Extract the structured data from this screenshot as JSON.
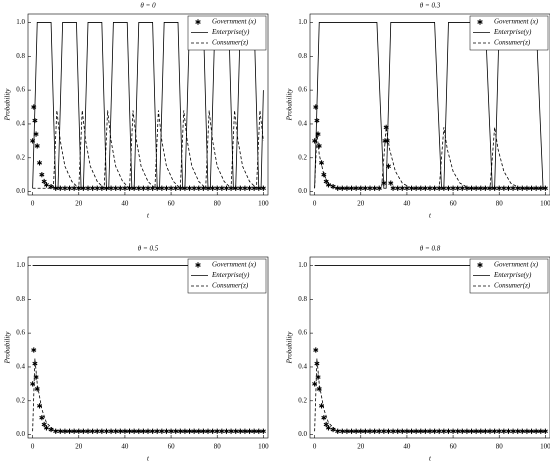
{
  "chart_data": [
    {
      "type": "line",
      "title": "θ = 0",
      "xlabel": "t",
      "ylabel": "Probability",
      "xlim": [
        -2,
        102
      ],
      "ylim": [
        -0.02,
        1.05
      ],
      "xticks": [
        0,
        20,
        40,
        60,
        80,
        100
      ],
      "yticks": [
        {
          "value": 0,
          "label": "0.0"
        },
        0.2,
        0.4,
        0.6,
        0.8,
        {
          "value": 1,
          "label": "1.0"
        }
      ],
      "legend": "upper right",
      "series": [
        {
          "name": "Government (x)",
          "style": "markers",
          "color": "#000000",
          "x": [
            0,
            0.5,
            1,
            1.5,
            2,
            3,
            4,
            5,
            6,
            8,
            10,
            12,
            14,
            16,
            18,
            20,
            22,
            24,
            26,
            28,
            30,
            32,
            34,
            36,
            38,
            40,
            42,
            44,
            46,
            48,
            50,
            52,
            54,
            56,
            58,
            60,
            62,
            64,
            66,
            68,
            70,
            72,
            74,
            76,
            78,
            80,
            82,
            84,
            86,
            88,
            90,
            92,
            94,
            96,
            98,
            100
          ],
          "values": [
            0.3,
            0.5,
            0.42,
            0.34,
            0.27,
            0.17,
            0.1,
            0.06,
            0.04,
            0.03,
            0.02,
            0.02,
            0.02,
            0.02,
            0.02,
            0.02,
            0.02,
            0.02,
            0.02,
            0.02,
            0.02,
            0.02,
            0.02,
            0.02,
            0.02,
            0.02,
            0.02,
            0.02,
            0.02,
            0.02,
            0.02,
            0.02,
            0.02,
            0.02,
            0.02,
            0.02,
            0.02,
            0.02,
            0.02,
            0.02,
            0.02,
            0.02,
            0.02,
            0.02,
            0.02,
            0.02,
            0.02,
            0.02,
            0.02,
            0.02,
            0.02,
            0.02,
            0.02,
            0.02,
            0.02,
            0.02
          ]
        },
        {
          "name": "Enterprise(y)",
          "style": "solid",
          "color": "#000000",
          "x": [
            0,
            1,
            2,
            8,
            9,
            10,
            11,
            12,
            13,
            19,
            20,
            21,
            22,
            23,
            24,
            30,
            31,
            32,
            33,
            34,
            35,
            41,
            42,
            43,
            44,
            45,
            46,
            52,
            53,
            54,
            55,
            56,
            57,
            63,
            64,
            65,
            66,
            67,
            68,
            74,
            75,
            76,
            77,
            78,
            79,
            85,
            86,
            87,
            88,
            89,
            90,
            96,
            97,
            98,
            99,
            100
          ],
          "values": [
            0.02,
            0.5,
            1,
            1,
            0.5,
            0.02,
            0.02,
            0.5,
            1,
            1,
            0.5,
            0.02,
            0.02,
            0.5,
            1,
            1,
            0.5,
            0.02,
            0.02,
            0.5,
            1,
            1,
            0.5,
            0.02,
            0.02,
            0.5,
            1,
            1,
            0.5,
            0.02,
            0.02,
            0.5,
            1,
            1,
            0.5,
            0.02,
            0.02,
            0.5,
            1,
            1,
            0.5,
            0.02,
            0.02,
            0.5,
            1,
            1,
            0.5,
            0.02,
            0.02,
            0.5,
            1,
            1,
            0.5,
            0.02,
            0.02,
            0.6
          ]
        },
        {
          "name": "Consumer(z)",
          "style": "dashed",
          "color": "#000000",
          "x": [
            0,
            9,
            10.5,
            12,
            14,
            17,
            20,
            21.5,
            23,
            25,
            28,
            31,
            32.5,
            34,
            36,
            39,
            42,
            43.5,
            45,
            47,
            50,
            53,
            54.5,
            56,
            58,
            61,
            64,
            65.5,
            67,
            69,
            72,
            75,
            76.5,
            78,
            80,
            83,
            86,
            87.5,
            89,
            91,
            94,
            97,
            98.5,
            100
          ],
          "values": [
            0.02,
            0.02,
            0.48,
            0.3,
            0.15,
            0.06,
            0.02,
            0.48,
            0.3,
            0.15,
            0.06,
            0.02,
            0.48,
            0.3,
            0.15,
            0.06,
            0.02,
            0.48,
            0.3,
            0.15,
            0.06,
            0.02,
            0.48,
            0.3,
            0.15,
            0.06,
            0.02,
            0.48,
            0.3,
            0.15,
            0.06,
            0.02,
            0.48,
            0.3,
            0.15,
            0.06,
            0.02,
            0.48,
            0.3,
            0.15,
            0.06,
            0.02,
            0.48,
            0.3
          ]
        }
      ]
    },
    {
      "type": "line",
      "title": "θ = 0.3",
      "xlabel": "t",
      "ylabel": "Probability",
      "xlim": [
        -2,
        102
      ],
      "ylim": [
        -0.02,
        1.05
      ],
      "xticks": [
        0,
        20,
        40,
        60,
        80,
        100
      ],
      "yticks": [
        {
          "value": 0,
          "label": "0.0"
        },
        0.2,
        0.4,
        0.6,
        0.8,
        {
          "value": 1,
          "label": "1.0"
        }
      ],
      "legend": "upper right",
      "series": [
        {
          "name": "Government (x)",
          "style": "markers",
          "color": "#000000",
          "x": [
            0,
            0.5,
            1,
            1.5,
            2,
            3,
            4,
            5,
            6,
            8,
            10,
            12,
            14,
            16,
            18,
            20,
            22,
            24,
            26,
            28,
            30,
            30.5,
            31,
            31.5,
            32,
            33,
            34,
            36,
            38,
            40,
            42,
            44,
            46,
            48,
            50,
            52,
            54,
            56,
            58,
            60,
            62,
            64,
            66,
            68,
            70,
            72,
            74,
            76,
            78,
            80,
            82,
            84,
            86,
            88,
            90,
            92,
            94,
            96,
            98,
            100
          ],
          "values": [
            0.3,
            0.5,
            0.42,
            0.34,
            0.27,
            0.17,
            0.1,
            0.06,
            0.04,
            0.03,
            0.02,
            0.02,
            0.02,
            0.02,
            0.02,
            0.02,
            0.02,
            0.02,
            0.02,
            0.02,
            0.05,
            0.3,
            0.38,
            0.3,
            0.15,
            0.05,
            0.02,
            0.02,
            0.02,
            0.02,
            0.02,
            0.02,
            0.02,
            0.02,
            0.02,
            0.02,
            0.02,
            0.02,
            0.02,
            0.02,
            0.02,
            0.02,
            0.02,
            0.02,
            0.02,
            0.02,
            0.02,
            0.02,
            0.02,
            0.02,
            0.02,
            0.02,
            0.02,
            0.02,
            0.02,
            0.02,
            0.02,
            0.02,
            0.02,
            0.02
          ]
        },
        {
          "name": "Enterprise(y)",
          "style": "solid",
          "color": "#000000",
          "x": [
            0,
            1,
            2,
            27,
            28.5,
            30,
            31,
            32,
            33,
            52,
            53.5,
            55,
            56,
            57,
            58,
            74,
            75.5,
            77,
            78,
            79,
            80,
            96,
            97.5,
            99,
            100
          ],
          "values": [
            0.02,
            0.5,
            1,
            1,
            0.5,
            0.02,
            0.02,
            0.5,
            1,
            1,
            0.5,
            0.02,
            0.02,
            0.5,
            1,
            1,
            0.5,
            0.02,
            0.02,
            0.5,
            1,
            1,
            0.5,
            0.02,
            0.02
          ]
        },
        {
          "name": "Consumer(z)",
          "style": "dashed",
          "color": "#000000",
          "x": [
            0,
            1,
            2,
            4,
            6,
            9,
            29,
            31,
            32.5,
            35,
            38,
            42,
            54,
            56,
            57.5,
            60,
            63,
            67,
            76,
            78,
            79.5,
            82,
            85,
            89,
            100
          ],
          "values": [
            0.02,
            0.35,
            0.22,
            0.1,
            0.05,
            0.02,
            0.02,
            0.38,
            0.25,
            0.12,
            0.05,
            0.02,
            0.02,
            0.38,
            0.25,
            0.12,
            0.05,
            0.02,
            0.02,
            0.38,
            0.25,
            0.12,
            0.05,
            0.02,
            0.02
          ]
        }
      ]
    },
    {
      "type": "line",
      "title": "θ = 0.5",
      "xlabel": "t",
      "ylabel": "Probability",
      "xlim": [
        -2,
        102
      ],
      "ylim": [
        -0.02,
        1.05
      ],
      "xticks": [
        0,
        20,
        40,
        60,
        80,
        100
      ],
      "yticks": [
        {
          "value": 0,
          "label": "0.0"
        },
        0.2,
        0.4,
        0.6,
        0.8,
        {
          "value": 1,
          "label": "1.0"
        }
      ],
      "legend": "upper right",
      "series": [
        {
          "name": "Government (x)",
          "style": "markers",
          "color": "#000000",
          "x": [
            0,
            0.5,
            1,
            1.5,
            2,
            3,
            4,
            5,
            6,
            8,
            10,
            12,
            14,
            16,
            18,
            20,
            22,
            24,
            26,
            28,
            30,
            32,
            34,
            36,
            38,
            40,
            42,
            44,
            46,
            48,
            50,
            52,
            54,
            56,
            58,
            60,
            62,
            64,
            66,
            68,
            70,
            72,
            74,
            76,
            78,
            80,
            82,
            84,
            86,
            88,
            90,
            92,
            94,
            96,
            98,
            100
          ],
          "values": [
            0.3,
            0.5,
            0.42,
            0.34,
            0.27,
            0.17,
            0.1,
            0.06,
            0.04,
            0.03,
            0.02,
            0.02,
            0.02,
            0.02,
            0.02,
            0.02,
            0.02,
            0.02,
            0.02,
            0.02,
            0.02,
            0.02,
            0.02,
            0.02,
            0.02,
            0.02,
            0.02,
            0.02,
            0.02,
            0.02,
            0.02,
            0.02,
            0.02,
            0.02,
            0.02,
            0.02,
            0.02,
            0.02,
            0.02,
            0.02,
            0.02,
            0.02,
            0.02,
            0.02,
            0.02,
            0.02,
            0.02,
            0.02,
            0.02,
            0.02,
            0.02,
            0.02,
            0.02,
            0.02,
            0.02,
            0.02
          ]
        },
        {
          "name": "Enterprise(y)",
          "style": "solid",
          "color": "#000000",
          "x": [
            0,
            100
          ],
          "values": [
            1,
            1
          ]
        },
        {
          "name": "Consumer(z)",
          "style": "dashed",
          "color": "#000000",
          "x": [
            0,
            1,
            2,
            4,
            6,
            9,
            12,
            100
          ],
          "values": [
            0.02,
            0.45,
            0.3,
            0.15,
            0.07,
            0.03,
            0.02,
            0.02
          ]
        }
      ]
    },
    {
      "type": "line",
      "title": "θ = 0.8",
      "xlabel": "t",
      "ylabel": "Probability",
      "xlim": [
        -2,
        102
      ],
      "ylim": [
        -0.02,
        1.05
      ],
      "xticks": [
        0,
        20,
        40,
        60,
        80,
        100
      ],
      "yticks": [
        {
          "value": 0,
          "label": "0.0"
        },
        0.2,
        0.4,
        0.6,
        0.8,
        {
          "value": 1,
          "label": "1.0"
        }
      ],
      "legend": "upper right",
      "series": [
        {
          "name": "Government (x)",
          "style": "markers",
          "color": "#000000",
          "x": [
            0,
            0.5,
            1,
            1.5,
            2,
            3,
            4,
            5,
            6,
            8,
            10,
            12,
            14,
            16,
            18,
            20,
            22,
            24,
            26,
            28,
            30,
            32,
            34,
            36,
            38,
            40,
            42,
            44,
            46,
            48,
            50,
            52,
            54,
            56,
            58,
            60,
            62,
            64,
            66,
            68,
            70,
            72,
            74,
            76,
            78,
            80,
            82,
            84,
            86,
            88,
            90,
            92,
            94,
            96,
            98,
            100
          ],
          "values": [
            0.3,
            0.5,
            0.42,
            0.34,
            0.27,
            0.17,
            0.1,
            0.06,
            0.04,
            0.03,
            0.02,
            0.02,
            0.02,
            0.02,
            0.02,
            0.02,
            0.02,
            0.02,
            0.02,
            0.02,
            0.02,
            0.02,
            0.02,
            0.02,
            0.02,
            0.02,
            0.02,
            0.02,
            0.02,
            0.02,
            0.02,
            0.02,
            0.02,
            0.02,
            0.02,
            0.02,
            0.02,
            0.02,
            0.02,
            0.02,
            0.02,
            0.02,
            0.02,
            0.02,
            0.02,
            0.02,
            0.02,
            0.02,
            0.02,
            0.02,
            0.02,
            0.02,
            0.02,
            0.02,
            0.02,
            0.02
          ]
        },
        {
          "name": "Enterprise(y)",
          "style": "solid",
          "color": "#000000",
          "x": [
            0,
            100
          ],
          "values": [
            1,
            1
          ]
        },
        {
          "name": "Consumer(z)",
          "style": "dashed",
          "color": "#000000",
          "x": [
            0,
            1,
            2,
            4,
            6,
            9,
            12,
            100
          ],
          "values": [
            0.02,
            0.45,
            0.3,
            0.15,
            0.07,
            0.03,
            0.02,
            0.02
          ]
        }
      ]
    }
  ]
}
